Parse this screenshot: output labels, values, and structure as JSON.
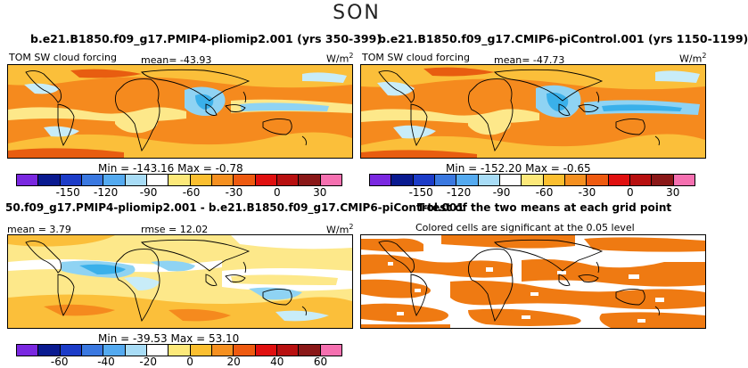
{
  "season": "SON",
  "colors": {
    "pos_strong": "#e85d10",
    "pos": "#f58a1e",
    "pos_light": "#fbbf3a",
    "pos_pale": "#fde88a",
    "neutral": "#ffffff",
    "neg_pale": "#c8ecf8",
    "neg_light": "#8fd3f3",
    "neg": "#3ab0ea",
    "neg_strong": "#2a6fd6",
    "sig": "#ef7a12"
  },
  "colorbar_colors": [
    "#7a28e0",
    "#0a1a90",
    "#1c3cc8",
    "#3a78e0",
    "#54aaf0",
    "#a8dcf6",
    "#ffffff",
    "#fde97a",
    "#fbbf30",
    "#f59020",
    "#ee5a10",
    "#e01010",
    "#b81010",
    "#8a1818",
    "#f570b0"
  ],
  "panels": {
    "top_left": {
      "title": "b.e21.B1850.f09_g17.PMIP4-pliomip2.001 (yrs 350-399)",
      "field": "TOM SW cloud forcing",
      "mean_label": "mean= -43.93",
      "units": "W/m",
      "units_exp": "2",
      "minmax": "Min = -143.16  Max =  -0.78",
      "ticks": [
        "-150",
        "-120",
        "-90",
        "-60",
        "-30",
        "0",
        "30"
      ]
    },
    "top_right": {
      "title": "b.e21.B1850.f09_g17.CMIP6-piControl.001 (yrs 1150-1199)",
      "field": "TOM SW cloud forcing",
      "mean_label": "mean= -47.73",
      "units": "W/m",
      "units_exp": "2",
      "minmax": "Min = -152.20  Max =  -0.65",
      "ticks": [
        "-150",
        "-120",
        "-90",
        "-60",
        "-30",
        "0",
        "30"
      ]
    },
    "bottom_left": {
      "title": "50.f09_g17.PMIP4-pliomip2.001 - b.e21.B1850.f09_g17.CMIP6-piControl.001",
      "mean_label": "mean =  3.79",
      "rmse_label": "rmse =  12.02",
      "units": "W/m",
      "units_exp": "2",
      "minmax": "Min = -39.53  Max =  53.10",
      "ticks": [
        "-60",
        "-40",
        "-20",
        "0",
        "20",
        "40",
        "60"
      ]
    },
    "bottom_right": {
      "title": "T-test of the two means at each grid point",
      "subtitle": "Colored cells are significant at the 0.05 level"
    }
  }
}
